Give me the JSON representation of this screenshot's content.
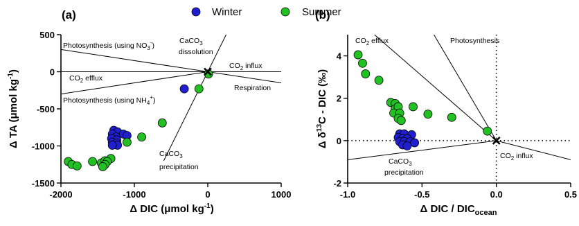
{
  "legend": [
    {
      "label": "Winter",
      "color": "#1f1fd0"
    },
    {
      "label": "Summer",
      "color": "#22c022"
    }
  ],
  "chart_data": [
    {
      "type": "scatter",
      "panel_label": "(a)",
      "xlabel": "Δ DIC (μmol kg-1)",
      "xlabel_main": "Δ DIC (μmol kg",
      "xlabel_sup": "-1",
      "xlabel_close": ")",
      "ylabel": "Δ TA (μmol kg-1)",
      "ylabel_main": "Δ TA (μmol kg",
      "ylabel_sup": "-1",
      "ylabel_close": ")",
      "xlim": [
        -2000,
        1000
      ],
      "ylim": [
        -1500,
        500
      ],
      "xticks": [
        -2000,
        -1000,
        0,
        1000
      ],
      "xtick_labels": [
        "-2000",
        "-1000",
        "0",
        "1000"
      ],
      "yticks": [
        500,
        0,
        -500,
        -1000,
        -1500
      ],
      "ytick_labels": [
        "500",
        "0",
        "-500",
        "-1000",
        "-1500"
      ],
      "origin_marker": [
        0,
        0
      ],
      "reference_lines": [
        {
          "name": "co2",
          "slope": 0
        },
        {
          "name": "photo_no3",
          "from": [
            -2000,
            300
          ],
          "to": [
            0,
            0
          ]
        },
        {
          "name": "photo_nh4",
          "from": [
            -2000,
            -300
          ],
          "to": [
            0,
            0
          ]
        },
        {
          "name": "respiration",
          "from": [
            0,
            0
          ],
          "to": [
            1000,
            -150
          ]
        },
        {
          "name": "caco3",
          "from": [
            -600,
            -1200
          ],
          "to": [
            250,
            500
          ]
        }
      ],
      "annotations": {
        "photo_no3": {
          "text": "Photosynthesis (using NO",
          "sub": "3",
          "sup": "-",
          "close": ")"
        },
        "caco3_dissolution_1": {
          "text": "CaCO",
          "sub": "3"
        },
        "caco3_dissolution_2": {
          "text": "dissolution"
        },
        "co2_influx": {
          "text": "CO",
          "sub": "2",
          "rest": " influx"
        },
        "co2_efflux": {
          "text": "CO",
          "sub": "2",
          "rest": " efflux"
        },
        "respiration": {
          "text": "Respiration"
        },
        "photo_nh4": {
          "text": "Photosynthesis (using NH",
          "sub": "4",
          "sup": "+",
          "close": ")"
        },
        "caco3_precip_1": {
          "text": "CaCO",
          "sub": "3"
        },
        "caco3_precip_2": {
          "text": "precipitation"
        }
      },
      "series": [
        {
          "name": "Winter",
          "color": "#1f1fd0",
          "points": [
            [
              -1280,
              -790
            ],
            [
              -1230,
              -810
            ],
            [
              -1300,
              -840
            ],
            [
              -1150,
              -840
            ],
            [
              -1100,
              -860
            ],
            [
              -1250,
              -880
            ],
            [
              -1310,
              -900
            ],
            [
              -1240,
              -920
            ],
            [
              -1300,
              -950
            ],
            [
              -1240,
              -960
            ],
            [
              -1230,
              -990
            ],
            [
              -1300,
              -990
            ],
            [
              -320,
              -230
            ]
          ]
        },
        {
          "name": "Summer",
          "color": "#22c022",
          "points": [
            [
              -1900,
              -1210
            ],
            [
              -1850,
              -1250
            ],
            [
              -1780,
              -1270
            ],
            [
              -1570,
              -1210
            ],
            [
              -1450,
              -1230
            ],
            [
              -1400,
              -1200
            ],
            [
              -1320,
              -1170
            ],
            [
              -1370,
              -1210
            ],
            [
              -1400,
              -1250
            ],
            [
              -1430,
              -1280
            ],
            [
              -1100,
              -950
            ],
            [
              -900,
              -880
            ],
            [
              -620,
              -690
            ],
            [
              -120,
              -230
            ],
            [
              10,
              -30
            ]
          ]
        }
      ]
    },
    {
      "type": "scatter",
      "panel_label": "(b)",
      "xlabel": "Δ DIC / DICocean",
      "xlabel_main": "Δ DIC / DIC",
      "xlabel_sub": "ocean",
      "ylabel": "Δ δ13C - DIC (‰)",
      "ylabel_pre": "Δ δ",
      "ylabel_sup": "13",
      "ylabel_post": "C - DIC (‰)",
      "xlim": [
        -1.0,
        0.5
      ],
      "ylim": [
        -2,
        5
      ],
      "xticks": [
        -1.0,
        -0.5,
        0.0,
        0.5
      ],
      "xtick_labels": [
        "-1.0",
        "-0.5",
        "0.0",
        "0.5"
      ],
      "yticks": [
        4,
        2,
        0,
        -2
      ],
      "ytick_labels": [
        "4",
        "2",
        "0",
        "-2"
      ],
      "origin_marker": [
        0,
        0
      ],
      "reference_lines": [
        {
          "name": "efflux",
          "from": [
            -0.82,
            5
          ],
          "to": [
            0,
            0
          ]
        },
        {
          "name": "photosynthesis",
          "from": [
            -0.42,
            5
          ],
          "to": [
            0,
            0
          ]
        },
        {
          "name": "precip",
          "from": [
            -1.0,
            -0.9
          ],
          "to": [
            0,
            0
          ]
        },
        {
          "name": "influx",
          "from": [
            0,
            0
          ],
          "to": [
            0.5,
            -0.9
          ]
        }
      ],
      "annotations": {
        "co2_efflux": {
          "text": "CO",
          "sub": "2",
          "rest": "  efflux"
        },
        "photosynthesis": {
          "text": "Photosynthesis"
        },
        "caco3_precip_1": {
          "text": "CaCO",
          "sub": "3"
        },
        "caco3_precip_2": {
          "text": "precipitation"
        },
        "co2_influx": {
          "text": "CO",
          "sub": "2",
          "rest": "  influx"
        }
      },
      "series": [
        {
          "name": "Winter",
          "color": "#1f1fd0",
          "points": [
            [
              -0.65,
              0.32
            ],
            [
              -0.62,
              0.32
            ],
            [
              -0.57,
              0.28
            ],
            [
              -0.66,
              0.15
            ],
            [
              -0.63,
              0.1
            ],
            [
              -0.6,
              0.1
            ],
            [
              -0.65,
              -0.05
            ],
            [
              -0.62,
              -0.05
            ],
            [
              -0.58,
              -0.05
            ],
            [
              -0.55,
              -0.1
            ],
            [
              -0.63,
              -0.2
            ],
            [
              -0.6,
              -0.25
            ]
          ]
        },
        {
          "name": "Summer",
          "color": "#22c022",
          "points": [
            [
              -0.93,
              4.05
            ],
            [
              -0.9,
              3.65
            ],
            [
              -0.88,
              3.15
            ],
            [
              -0.79,
              2.85
            ],
            [
              -0.71,
              1.8
            ],
            [
              -0.68,
              1.75
            ],
            [
              -0.68,
              1.5
            ],
            [
              -0.66,
              1.6
            ],
            [
              -0.69,
              1.3
            ],
            [
              -0.65,
              1.3
            ],
            [
              -0.66,
              1.05
            ],
            [
              -0.64,
              0.95
            ],
            [
              -0.56,
              1.6
            ],
            [
              -0.46,
              1.25
            ],
            [
              -0.3,
              1.1
            ],
            [
              -0.06,
              0.45
            ]
          ]
        }
      ]
    }
  ]
}
